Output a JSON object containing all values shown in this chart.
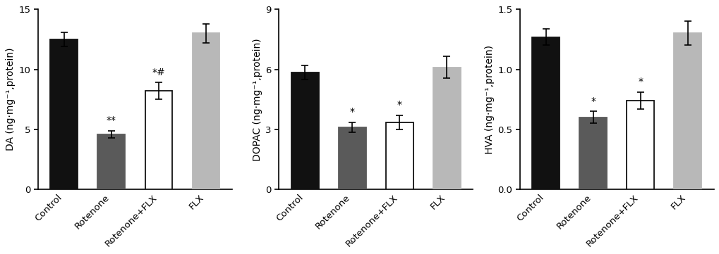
{
  "charts": [
    {
      "ylabel": "DA (ng·mg⁻¹,protein)",
      "ylim": [
        0,
        15
      ],
      "yticks": [
        0,
        5,
        10,
        15
      ],
      "values": [
        12.5,
        4.6,
        8.2,
        13.0
      ],
      "errors": [
        0.6,
        0.3,
        0.7,
        0.8
      ],
      "annotations": [
        "",
        "**",
        "*#",
        ""
      ],
      "colors": [
        "#111111",
        "#5a5a5a",
        "#ffffff",
        "#b8b8b8"
      ],
      "edgecolors": [
        "#111111",
        "#5a5a5a",
        "#111111",
        "#b8b8b8"
      ]
    },
    {
      "ylabel": "DOPAC (ng·mg⁻¹,protein)",
      "ylim": [
        0,
        9
      ],
      "yticks": [
        0,
        3,
        6,
        9
      ],
      "values": [
        5.85,
        3.1,
        3.35,
        6.1
      ],
      "errors": [
        0.35,
        0.25,
        0.35,
        0.55
      ],
      "annotations": [
        "",
        "*",
        "*",
        ""
      ],
      "colors": [
        "#111111",
        "#5a5a5a",
        "#ffffff",
        "#b8b8b8"
      ],
      "edgecolors": [
        "#111111",
        "#5a5a5a",
        "#111111",
        "#b8b8b8"
      ]
    },
    {
      "ylabel": "HVA (ng·mg⁻¹,protein)",
      "ylim": [
        0,
        1.5
      ],
      "yticks": [
        0.0,
        0.5,
        1.0,
        1.5
      ],
      "values": [
        1.27,
        0.6,
        0.74,
        1.3
      ],
      "errors": [
        0.07,
        0.05,
        0.07,
        0.1
      ],
      "annotations": [
        "",
        "*",
        "*",
        ""
      ],
      "colors": [
        "#111111",
        "#5a5a5a",
        "#ffffff",
        "#b8b8b8"
      ],
      "edgecolors": [
        "#111111",
        "#5a5a5a",
        "#111111",
        "#b8b8b8"
      ]
    }
  ],
  "categories": [
    "Control",
    "Rotenone",
    "Rotenone+FLX",
    "FLX"
  ],
  "bar_width": 0.58,
  "annotation_color": "#000000",
  "annotation_fontsize": 10,
  "tick_fontsize": 9.5,
  "ylabel_fontsize": 10,
  "label_color": "#000000",
  "background_color": "#ffffff"
}
